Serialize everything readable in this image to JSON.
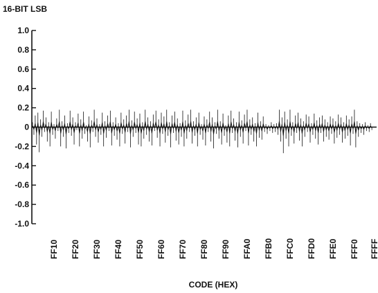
{
  "chart_data": {
    "type": "line",
    "title": "",
    "ylabel": "16-BIT LSB",
    "xlabel": "CODE (HEX)",
    "ylim": [
      -1.0,
      1.0
    ],
    "y_ticks": [
      "1.0",
      "0.8",
      "0.6",
      "0.4",
      "0.2",
      "0",
      "-0.2",
      "-0.4",
      "-0.6",
      "-0.8",
      "-1.0"
    ],
    "y_tick_values": [
      1.0,
      0.8,
      0.6,
      0.4,
      0.2,
      0,
      -0.2,
      -0.4,
      -0.6,
      -0.8,
      -1.0
    ],
    "x_range_hex": [
      "FF00",
      "FFFF"
    ],
    "x_ticks": [
      "FF10",
      "FF20",
      "FF30",
      "FF40",
      "FF50",
      "FF60",
      "FF70",
      "FF80",
      "FF90",
      "FFA0",
      "FFB0",
      "FFC0",
      "FFD0",
      "FFE0",
      "FFF0",
      "FFFF"
    ],
    "x_tick_codes": [
      65296,
      65312,
      65328,
      65344,
      65360,
      65376,
      65392,
      65408,
      65424,
      65440,
      65456,
      65472,
      65488,
      65504,
      65520,
      65535
    ],
    "series": [
      {
        "type": "differential-nonlinearity",
        "x_start_code": 65280,
        "x_step": 1,
        "values": [
          0.05,
          -0.08,
          0.12,
          -0.18,
          0.15,
          -0.26,
          0.08,
          -0.1,
          0.17,
          -0.05,
          0.1,
          -0.15,
          0.05,
          -0.2,
          0.16,
          -0.08,
          0.03,
          -0.12,
          0.09,
          -0.04,
          0.18,
          -0.2,
          0.06,
          -0.1,
          0.12,
          -0.22,
          0.04,
          -0.06,
          0.17,
          -0.09,
          0.1,
          -0.18,
          0.05,
          -0.03,
          0.14,
          -0.2,
          0.08,
          -0.12,
          0.16,
          -0.07,
          0.02,
          -0.15,
          0.11,
          -0.21,
          0.07,
          -0.05,
          0.18,
          -0.1,
          0.09,
          -0.16,
          0.03,
          -0.08,
          0.15,
          -0.2,
          0.06,
          -0.11,
          0.12,
          -0.04,
          0.17,
          -0.19,
          0.05,
          -0.09,
          0.1,
          -0.13,
          0.04,
          -0.2,
          0.15,
          -0.07,
          0.08,
          -0.17,
          0.12,
          -0.05,
          0.18,
          -0.21,
          0.07,
          -0.1,
          0.16,
          -0.06,
          0.09,
          -0.18,
          0.14,
          -0.2,
          0.05,
          -0.12,
          0.18,
          -0.08,
          0.1,
          -0.15,
          0.06,
          -0.19,
          0.13,
          -0.04,
          0.17,
          -0.11,
          0.08,
          -0.2,
          0.15,
          -0.07,
          0.11,
          -0.16,
          0.18,
          -0.09,
          0.05,
          -0.21,
          0.12,
          -0.06,
          0.16,
          -0.14,
          0.09,
          -0.18,
          0.04,
          -0.1,
          0.17,
          -0.2,
          0.07,
          -0.12,
          0.13,
          -0.05,
          0.18,
          -0.17,
          0.06,
          -0.09,
          0.1,
          -0.2,
          0.15,
          -0.08,
          0.03,
          -0.13,
          0.11,
          -0.19,
          0.08,
          -0.05,
          0.16,
          -0.15,
          0.1,
          -0.22,
          0.05,
          -0.07,
          0.18,
          -0.12,
          0.06,
          -0.18,
          0.14,
          -0.09,
          0.02,
          -0.16,
          0.12,
          -0.2,
          0.17,
          -0.06,
          0.09,
          -0.14,
          0.05,
          -0.21,
          0.16,
          -0.1,
          0.07,
          -0.17,
          0.13,
          -0.04,
          0.18,
          -0.19,
          0.08,
          -0.08,
          0.1,
          -0.15,
          0.04,
          -0.2,
          0.15,
          -0.11,
          0.06,
          -0.13,
          0.11,
          -0.05,
          0.03,
          -0.07,
          0.02,
          -0.04,
          0.05,
          -0.06,
          0.03,
          -0.05,
          0.04,
          -0.08,
          0.18,
          -0.15,
          0.1,
          -0.27,
          0.16,
          -0.12,
          0.08,
          -0.2,
          0.18,
          -0.09,
          0.05,
          -0.17,
          0.12,
          -0.06,
          0.15,
          -0.14,
          0.09,
          -0.2,
          0.06,
          -0.1,
          0.13,
          -0.05,
          0.11,
          -0.16,
          0.04,
          -0.08,
          0.14,
          -0.12,
          0.07,
          -0.18,
          0.1,
          -0.06,
          0.12,
          -0.15,
          0.08,
          -0.1,
          0.05,
          -0.13,
          0.11,
          -0.07,
          0.09,
          -0.17,
          0.06,
          -0.11,
          0.13,
          -0.08,
          0.1,
          -0.16,
          0.05,
          -0.12,
          0.12,
          -0.09,
          0.08,
          -0.19,
          0.11,
          -0.07,
          0.18,
          -0.21,
          0.06,
          -0.1,
          0.04,
          -0.06,
          0.03,
          -0.08,
          0.05,
          -0.04,
          0.02,
          -0.05,
          0.04,
          -0.03
        ]
      }
    ],
    "grid": false,
    "zero_line": true
  }
}
